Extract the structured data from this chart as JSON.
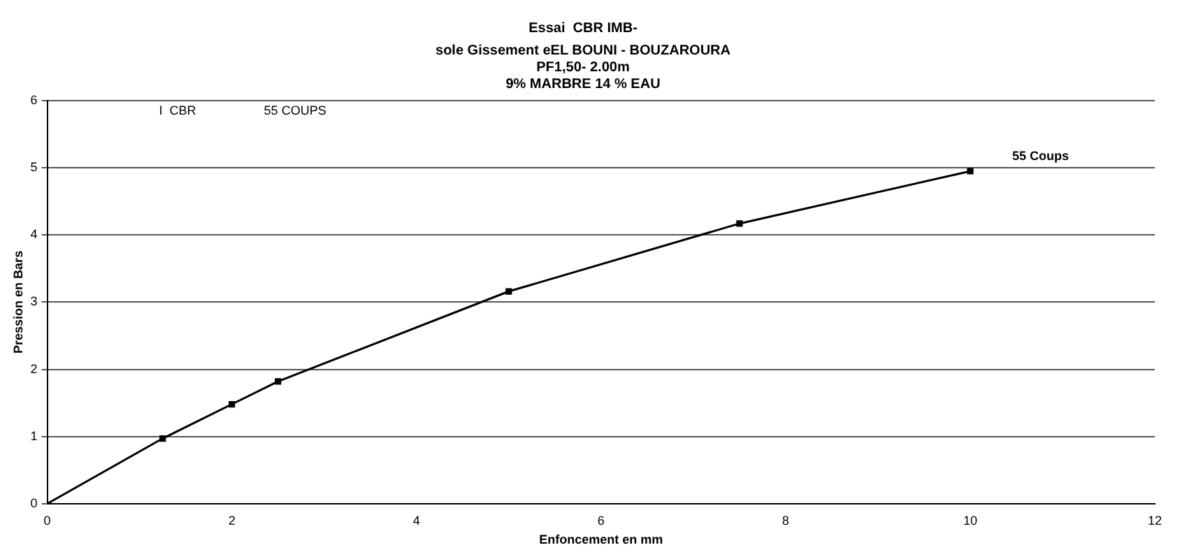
{
  "chart_data": {
    "type": "line",
    "title": "Essai  CBR IMB-",
    "subtitle": "sole Gissement eEL BOUNI - BOUZAROURA\nPF1,50- 2.00m\n9% MARBRE 14 % EAU",
    "xlabel": "Enfoncement en mm",
    "ylabel": "Pression en Bars",
    "x": [
      0,
      1.25,
      2,
      2.5,
      5,
      7.5,
      10
    ],
    "series": [
      {
        "name": "55 Coups",
        "color": "#000000",
        "values": [
          0,
          0.97,
          1.48,
          1.82,
          3.16,
          4.17,
          4.95
        ]
      }
    ],
    "annotations": [
      "I  CBR",
      "55 COUPS"
    ],
    "xlim": [
      0,
      12
    ],
    "xticks": [
      0,
      2,
      4,
      6,
      8,
      10,
      12
    ],
    "ylim": [
      0,
      6
    ],
    "yticks": [
      0,
      1,
      2,
      3,
      4,
      5,
      6
    ],
    "grid": "y",
    "legend": false,
    "marker": "square",
    "line_style": "solid"
  }
}
